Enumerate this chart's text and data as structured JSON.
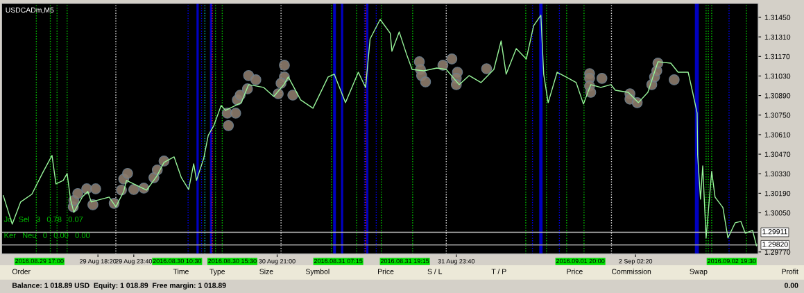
{
  "chart_data": {
    "type": "line",
    "title": "USDCADm,M5",
    "xlim": [
      "2016-08-29T04:00",
      "2016-09-02T20:35"
    ],
    "ylim": [
      1.29755,
      1.31549
    ],
    "xticks": [
      {
        "value": "2016-08-29T18:20",
        "label": "29 Aug 18:20"
      },
      {
        "value": "2016-08-29T23:40",
        "label": "29 Aug 23:40"
      },
      {
        "value": "2016-08-30T21:00",
        "label": "30 Aug 21:00"
      },
      {
        "value": "2016-08-31T23:40",
        "label": "31 Aug 23:40"
      },
      {
        "value": "2016-09-02T02:20",
        "label": "2 Sep 02:20"
      }
    ],
    "yticks": [
      {
        "value": 1.2977,
        "label": "1.29770"
      },
      {
        "value": 1.3005,
        "label": "1.30050"
      },
      {
        "value": 1.3019,
        "label": "1.30190"
      },
      {
        "value": 1.3033,
        "label": "1.30330"
      },
      {
        "value": 1.3047,
        "label": "1.30470"
      },
      {
        "value": 1.3061,
        "label": "1.30610"
      },
      {
        "value": 1.3075,
        "label": "1.30750"
      },
      {
        "value": 1.3089,
        "label": "1.30890"
      },
      {
        "value": 1.3103,
        "label": "1.31030"
      },
      {
        "value": 1.3117,
        "label": "1.31170"
      },
      {
        "value": 1.3131,
        "label": "1.31310"
      },
      {
        "value": 1.3145,
        "label": "1.31450"
      }
    ],
    "series": [
      {
        "color": "#98f59a",
        "x": [
          "2016-08-29T04:15",
          "2016-08-29T05:35",
          "2016-08-29T06:50",
          "2016-08-29T08:30",
          "2016-08-29T10:10",
          "2016-08-29T11:30",
          "2016-08-29T12:05",
          "2016-08-29T13:10",
          "2016-08-29T13:45",
          "2016-08-29T14:15",
          "2016-08-29T14:45",
          "2016-08-29T16:00",
          "2016-08-29T16:50",
          "2016-08-29T17:20",
          "2016-08-29T18:50",
          "2016-08-29T20:00",
          "2016-08-29T21:00",
          "2016-08-29T22:10",
          "2016-08-29T22:35",
          "2016-08-30T00:05",
          "2016-08-30T01:35",
          "2016-08-30T03:05",
          "2016-08-30T04:10",
          "2016-08-30T05:40",
          "2016-08-30T06:45",
          "2016-08-30T07:50",
          "2016-08-30T08:35",
          "2016-08-30T09:00",
          "2016-08-30T10:05",
          "2016-08-30T10:45",
          "2016-08-30T11:35",
          "2016-08-30T12:40",
          "2016-08-30T13:20",
          "2016-08-30T15:40",
          "2016-08-30T16:45",
          "2016-08-30T19:00",
          "2016-08-30T20:30",
          "2016-08-30T22:00",
          "2016-08-30T22:40",
          "2016-08-31T00:30",
          "2016-08-31T02:20",
          "2016-08-31T04:35",
          "2016-08-31T05:30",
          "2016-08-31T07:10",
          "2016-08-31T09:05",
          "2016-08-31T10:10",
          "2016-08-31T10:50",
          "2016-08-31T12:20",
          "2016-08-31T13:50",
          "2016-08-31T14:05",
          "2016-08-31T15:10",
          "2016-08-31T16:15",
          "2016-08-31T17:05",
          "2016-08-31T18:50",
          "2016-08-31T20:45",
          "2016-08-31T22:10",
          "2016-09-01T00:05",
          "2016-09-01T01:35",
          "2016-09-01T03:20",
          "2016-09-01T05:15",
          "2016-09-01T06:20",
          "2016-09-01T07:05",
          "2016-09-01T08:35",
          "2016-09-01T10:05",
          "2016-09-01T11:10",
          "2016-09-01T12:15",
          "2016-09-01T12:40",
          "2016-09-01T13:20",
          "2016-09-01T14:40",
          "2016-09-01T16:00",
          "2016-09-01T17:30",
          "2016-09-01T18:35",
          "2016-09-01T19:40",
          "2016-09-01T21:10",
          "2016-09-01T22:40",
          "2016-09-01T23:20",
          "2016-09-02T01:15",
          "2016-09-02T02:45",
          "2016-09-02T04:10",
          "2016-09-02T05:40",
          "2016-09-02T07:35",
          "2016-09-02T08:40",
          "2016-09-02T10:10",
          "2016-09-02T10:50",
          "2016-09-02T11:30",
          "2016-09-02T11:35",
          "2016-09-02T12:00",
          "2016-09-02T12:20",
          "2016-09-02T12:50",
          "2016-09-02T13:40",
          "2016-09-02T14:10",
          "2016-09-02T15:20",
          "2016-09-02T16:05",
          "2016-09-02T17:10",
          "2016-09-02T18:00",
          "2016-09-02T18:40",
          "2016-09-02T19:45",
          "2016-09-02T20:20"
        ],
        "values": [
          1.30173,
          1.29969,
          1.30128,
          1.30183,
          1.30342,
          1.30461,
          1.30257,
          1.30282,
          1.30332,
          1.30148,
          1.30053,
          1.30163,
          1.30203,
          1.30128,
          1.30148,
          1.30163,
          1.30093,
          1.30203,
          1.30282,
          1.30247,
          1.30213,
          1.30312,
          1.30411,
          1.30451,
          1.30302,
          1.30217,
          1.30401,
          1.30282,
          1.30441,
          1.30605,
          1.30675,
          1.30819,
          1.30784,
          1.30839,
          1.30968,
          1.30948,
          1.30883,
          1.30968,
          1.31023,
          1.30859,
          1.30799,
          1.31023,
          1.31043,
          1.30839,
          1.31057,
          1.30948,
          1.31296,
          1.31435,
          1.31336,
          1.31207,
          1.31346,
          1.31187,
          1.31077,
          1.31067,
          1.31087,
          1.31077,
          1.30968,
          1.31033,
          1.30983,
          1.31077,
          1.31281,
          1.31043,
          1.31226,
          1.31152,
          1.3139,
          1.31465,
          1.31043,
          1.30839,
          1.31057,
          1.31023,
          1.30983,
          1.30829,
          1.30968,
          1.30948,
          1.30968,
          1.30928,
          1.30913,
          1.30839,
          1.30913,
          1.31132,
          1.31122,
          1.31057,
          1.31057,
          1.30913,
          1.30764,
          1.30461,
          1.30148,
          1.30386,
          1.2987,
          1.30347,
          1.30163,
          1.30088,
          1.2987,
          1.29979,
          1.29989,
          1.29904,
          1.29924,
          1.29815
        ]
      },
      {
        "type": "scatter",
        "color": "#8c7b6b",
        "marker": "circle",
        "x": [
          "2016-08-29T14:40",
          "2016-08-29T14:45",
          "2016-08-29T15:20",
          "2016-08-29T16:40",
          "2016-08-29T18:00",
          "2016-08-29T17:35",
          "2016-08-29T20:45",
          "2016-08-29T21:50",
          "2016-08-29T22:10",
          "2016-08-29T22:45",
          "2016-08-29T23:40",
          "2016-08-30T01:10",
          "2016-08-30T02:40",
          "2016-08-30T03:10",
          "2016-08-30T04:10",
          "2016-08-30T13:35",
          "2016-08-30T13:45",
          "2016-08-30T14:50",
          "2016-08-30T15:05",
          "2016-08-30T15:30",
          "2016-08-30T16:45",
          "2016-08-30T17:50",
          "2016-08-30T16:35",
          "2016-08-30T22:05",
          "2016-08-30T22:05",
          "2016-08-30T21:35",
          "2016-08-30T21:10",
          "2016-08-30T23:20",
          "2016-08-31T18:10",
          "2016-08-31T18:20",
          "2016-08-31T18:30",
          "2016-08-31T19:05",
          "2016-08-31T21:40",
          "2016-08-31T23:00",
          "2016-08-31T23:50",
          "2016-08-31T23:40",
          "2016-08-31T23:40",
          "2016-09-01T04:10",
          "2016-09-01T19:30",
          "2016-09-01T19:30",
          "2016-09-01T19:30",
          "2016-09-01T19:40",
          "2016-09-01T21:20",
          "2016-09-02T01:30",
          "2016-09-02T01:30",
          "2016-09-02T02:35",
          "2016-09-02T04:45",
          "2016-09-02T05:10",
          "2016-09-02T05:30",
          "2016-09-02T05:40",
          "2016-09-02T08:05"
        ],
        "values": [
          1.30093,
          1.30138,
          1.30188,
          1.30222,
          1.30222,
          1.30108,
          1.30118,
          1.30213,
          1.30292,
          1.30332,
          1.30217,
          1.30227,
          1.30302,
          1.30357,
          1.30421,
          1.30764,
          1.30675,
          1.30764,
          1.30859,
          1.30893,
          1.31033,
          1.31003,
          1.30938,
          1.31107,
          1.31023,
          1.30978,
          1.30903,
          1.30893,
          1.31132,
          1.31077,
          1.31033,
          1.30988,
          1.31107,
          1.31152,
          1.31057,
          1.31013,
          1.30968,
          1.31082,
          1.31047,
          1.31013,
          1.30958,
          1.30913,
          1.31013,
          1.30903,
          1.30864,
          1.30839,
          1.30968,
          1.31023,
          1.31067,
          1.31122,
          1.31003
        ]
      }
    ],
    "ref_lines": [
      {
        "axis": "y",
        "value": 1.29911,
        "label": "1.29911",
        "color": "#c0c0c0",
        "line_style": "solid"
      },
      {
        "axis": "y",
        "value": 1.2982,
        "label": "1.29820",
        "color": "#a0a0a0",
        "line_style": "solid"
      },
      {
        "axis": "x",
        "value": "2016-08-29T09:10",
        "color": "#00c800",
        "line_style": "dotted"
      },
      {
        "axis": "x",
        "value": "2016-08-29T11:15",
        "color": "#00c800",
        "line_style": "dotted"
      },
      {
        "axis": "x",
        "value": "2016-08-29T12:15",
        "color": "#00c800",
        "line_style": "dotted"
      },
      {
        "axis": "x",
        "value": "2016-08-29T13:45",
        "color": "#00c800",
        "line_style": "dotted"
      },
      {
        "axis": "x",
        "value": "2016-08-29T21:00",
        "color": "#e0e0e0",
        "line_style": "dotted"
      },
      {
        "axis": "x",
        "value": "2016-08-30T07:45",
        "color": "#0000ff",
        "line_style": "dotted"
      },
      {
        "axis": "x",
        "value": "2016-08-30T09:45",
        "color": "#0000ff",
        "line_style": "dotted"
      },
      {
        "axis": "x",
        "value": "2016-08-30T10:15",
        "color": "#00c8c8",
        "line_style": "dotted"
      },
      {
        "axis": "x",
        "value": "2016-08-30T11:20",
        "color": "#ff2050",
        "line_style": "dotted"
      },
      {
        "axis": "x",
        "value": "2016-08-30T11:50",
        "color": "#00c800",
        "line_style": "dotted"
      },
      {
        "axis": "x",
        "value": "2016-08-30T12:50",
        "color": "#00c800",
        "line_style": "dotted"
      },
      {
        "axis": "x",
        "value": "2016-08-30T21:35",
        "color": "#e0e0e0",
        "line_style": "dotted"
      },
      {
        "axis": "x",
        "value": "2016-08-31T05:05",
        "color": "#00c800",
        "line_style": "dotted"
      },
      {
        "axis": "x",
        "value": "2016-08-31T08:50",
        "color": "#00c800",
        "line_style": "dotted"
      },
      {
        "axis": "x",
        "value": "2016-08-31T10:00",
        "color": "#0000ff",
        "line_style": "dotted"
      },
      {
        "axis": "x",
        "value": "2016-08-31T10:10",
        "color": "#ff2050",
        "line_style": "dotted"
      },
      {
        "axis": "x",
        "value": "2016-08-31T11:45",
        "color": "#0000ff",
        "line_style": "dotted"
      },
      {
        "axis": "x",
        "value": "2016-08-31T12:30",
        "color": "#00c800",
        "line_style": "dotted"
      },
      {
        "axis": "x",
        "value": "2016-08-31T17:10",
        "color": "#00c800",
        "line_style": "dotted"
      },
      {
        "axis": "x",
        "value": "2016-08-31T22:10",
        "color": "#e0e0e0",
        "line_style": "dotted"
      },
      {
        "axis": "x",
        "value": "2016-09-01T10:00",
        "color": "#00c800",
        "line_style": "dotted"
      },
      {
        "axis": "x",
        "value": "2016-09-01T11:00",
        "color": "#0000ff",
        "line_style": "dotted"
      },
      {
        "axis": "x",
        "value": "2016-09-01T13:05",
        "color": "#00c800",
        "line_style": "dotted"
      },
      {
        "axis": "x",
        "value": "2016-09-01T15:00",
        "color": "#0000ff",
        "line_style": "dotted"
      },
      {
        "axis": "x",
        "value": "2016-09-01T16:05",
        "color": "#00c800",
        "line_style": "dotted"
      },
      {
        "axis": "x",
        "value": "2016-09-01T18:40",
        "color": "#00c800",
        "line_style": "dotted"
      },
      {
        "axis": "x",
        "value": "2016-09-01T22:45",
        "color": "#e0e0e0",
        "line_style": "dotted"
      },
      {
        "axis": "x",
        "value": "2016-09-02T12:50",
        "color": "#00c800",
        "line_style": "dotted"
      },
      {
        "axis": "x",
        "value": "2016-09-02T13:10",
        "color": "#00c800",
        "line_style": "dotted"
      },
      {
        "axis": "x",
        "value": "2016-09-02T13:40",
        "color": "#00c800",
        "line_style": "dotted"
      },
      {
        "axis": "x",
        "value": "2016-09-02T16:15",
        "color": "#0000ff",
        "line_style": "dotted"
      },
      {
        "axis": "x",
        "value": "2016-09-02T18:50",
        "color": "#00c800",
        "line_style": "dotted"
      }
    ],
    "bands": [
      {
        "axis": "x",
        "from": "2016-08-30T09:00",
        "to": "2016-08-30T09:20",
        "color": "#0000c0"
      },
      {
        "axis": "x",
        "from": "2016-08-30T11:00",
        "to": "2016-08-30T11:20",
        "color": "#0000c0"
      },
      {
        "axis": "x",
        "from": "2016-08-31T05:20",
        "to": "2016-08-31T05:45",
        "color": "#0000c0"
      },
      {
        "axis": "x",
        "from": "2016-08-31T06:30",
        "to": "2016-08-31T06:50",
        "color": "#0000c0"
      },
      {
        "axis": "x",
        "from": "2016-08-31T10:15",
        "to": "2016-08-31T10:35",
        "color": "#0000c0"
      },
      {
        "axis": "x",
        "from": "2016-09-01T12:00",
        "to": "2016-09-01T12:30",
        "color": "#0000c0"
      },
      {
        "axis": "x",
        "from": "2016-09-02T11:10",
        "to": "2016-09-02T11:45",
        "color": "#0000c0"
      }
    ],
    "annotations": [
      "Jo   Sel   3   0.78   0.07",
      "Ker   Neu   0   0.00   0.00",
      "Order",
      "Time",
      "Type",
      "Size",
      "Symbol",
      "Price",
      "S / L",
      "T / P",
      "Price",
      "Commission",
      "Swap",
      "Profit",
      "Balance: 1 018.89 USD  Equity: 1 018.89  Free margin: 1 018.89",
      "0.00",
      "2016.08.29 17:00",
      "2016.08.30 10:30",
      "2016.08.30 15:30",
      "2016.08.31 07:15",
      "2016.08.31 19:15",
      "2016.09.01 20:00",
      "2016.09.02 19:30"
    ]
  }
}
